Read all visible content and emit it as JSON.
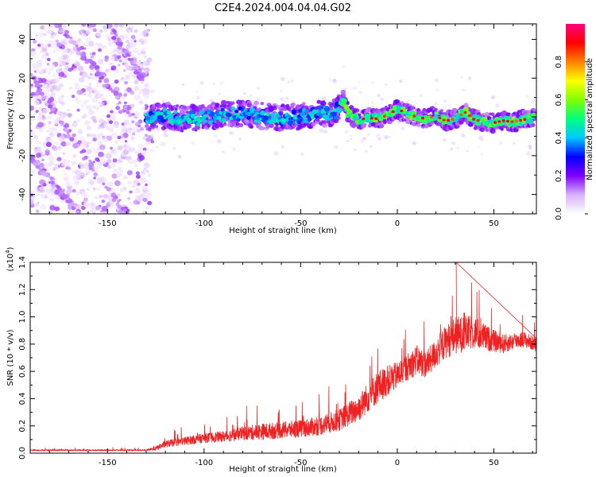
{
  "title": "C2E4.2024.004.04.04.G02",
  "chart_data": [
    {
      "type": "heatmap",
      "xlabel": "Height of straight line (km)",
      "ylabel": "Frequency (Hz)",
      "xlim": [
        -190,
        72
      ],
      "ylim": [
        -50,
        48
      ],
      "xticks": [
        -150,
        -100,
        -50,
        0,
        50
      ],
      "yticks": [
        -40,
        -20,
        0,
        20,
        40
      ],
      "colorbar": {
        "label": "Normalized spectral amplitude",
        "range": [
          0.0,
          1.0
        ],
        "ticks": [
          "0.0",
          "0.2",
          "0.4",
          "0.6",
          "0.8"
        ],
        "tick_values": [
          0.0,
          0.2,
          0.4,
          0.6,
          0.8
        ],
        "colors": [
          "#ffffff",
          "#d9b3ff",
          "#8000ff",
          "#0000ff",
          "#00c8ff",
          "#00ff80",
          "#80ff00",
          "#ffff00",
          "#ff8000",
          "#ff0000",
          "#ff0080"
        ]
      },
      "ridge": {
        "x": [
          -130,
          -120,
          -110,
          -100,
          -90,
          -80,
          -70,
          -60,
          -50,
          -40,
          -32,
          -28,
          -25,
          -20,
          -15,
          -10,
          -5,
          0,
          5,
          10,
          15,
          20,
          25,
          30,
          35,
          40,
          45,
          50,
          55,
          60,
          65,
          70
        ],
        "y": [
          -0.5,
          0.5,
          -1.0,
          -0.5,
          1.0,
          2.0,
          0.5,
          -0.5,
          0.5,
          1.5,
          2.5,
          8.5,
          1.0,
          -1.5,
          -0.5,
          -1.0,
          1.0,
          4.0,
          2.0,
          0.0,
          -1.0,
          0.5,
          -2.0,
          -1.0,
          2.5,
          -1.5,
          -2.5,
          -3.0,
          -2.0,
          -2.5,
          -1.5,
          -0.5
        ]
      },
      "noise_region": {
        "x": [
          -190,
          -128
        ],
        "y": [
          -50,
          48
        ]
      },
      "diagonal_streaks": [
        {
          "x": [
            -190,
            -140
          ],
          "y": [
            20,
            -50
          ]
        },
        {
          "x": [
            -175,
            -125
          ],
          "y": [
            48,
            -15
          ]
        },
        {
          "x": [
            -190,
            -165
          ],
          "y": [
            -20,
            -50
          ]
        },
        {
          "x": [
            -150,
            -132
          ],
          "y": [
            48,
            20
          ]
        }
      ]
    },
    {
      "type": "line",
      "xlabel": "Height of straight line (km)",
      "ylabel": "SNR (10 * v/v)",
      "y_scale_label": "(x10",
      "y_scale_exp": "4",
      "y_scale_close": ")",
      "xlim": [
        -190,
        72
      ],
      "ylim": [
        0.0,
        1.4
      ],
      "xticks": [
        -150,
        -100,
        -50,
        0,
        50
      ],
      "yticks": [
        0.0,
        0.2,
        0.4,
        0.6,
        0.8,
        1.0,
        1.2,
        1.4
      ],
      "ytick_labels": [
        "0.0",
        "0.2",
        "0.4",
        "0.6",
        "0.8",
        "1.0",
        "1.2",
        "1.4"
      ],
      "color": "#ee2222",
      "series": [
        {
          "x": [
            -190,
            -170,
            -150,
            -130,
            -125,
            -120,
            -110,
            -100,
            -90,
            -80,
            -70,
            -60,
            -50,
            -40,
            -30,
            -25,
            -20,
            -15,
            -10,
            -5,
            0,
            5,
            10,
            15,
            20,
            25,
            30,
            35,
            40,
            45,
            50,
            55,
            60,
            65,
            72
          ],
          "values": [
            0.02,
            0.02,
            0.02,
            0.02,
            0.03,
            0.06,
            0.08,
            0.1,
            0.11,
            0.13,
            0.14,
            0.15,
            0.16,
            0.18,
            0.22,
            0.26,
            0.3,
            0.38,
            0.45,
            0.5,
            0.54,
            0.6,
            0.65,
            0.62,
            0.7,
            0.78,
            0.82,
            0.84,
            0.85,
            0.82,
            0.8,
            0.78,
            0.8,
            0.82,
            0.78
          ],
          "spread": [
            0.01,
            0.01,
            0.01,
            0.01,
            0.03,
            0.05,
            0.06,
            0.07,
            0.08,
            0.1,
            0.12,
            0.12,
            0.13,
            0.14,
            0.16,
            0.18,
            0.2,
            0.22,
            0.24,
            0.22,
            0.2,
            0.2,
            0.22,
            0.2,
            0.22,
            0.24,
            0.28,
            0.26,
            0.24,
            0.2,
            0.16,
            0.14,
            0.12,
            0.12,
            0.1
          ]
        }
      ],
      "peak": {
        "x": 30.5,
        "y": 1.4
      }
    }
  ]
}
